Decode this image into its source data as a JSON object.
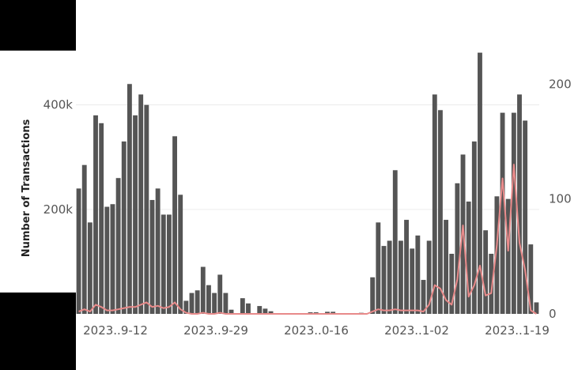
{
  "chart_data": {
    "type": "bar",
    "ylabel": "Number of Transactions",
    "x_tick_labels": [
      "2023..9-12",
      "2023..9-29",
      "2023..0-16",
      "2023..1-02",
      "2023..1-19"
    ],
    "y_left_ticks": [
      {
        "value": 200000,
        "label": "200k"
      },
      {
        "value": 400000,
        "label": "400k"
      }
    ],
    "y_right_ticks": [
      {
        "value": 0,
        "label": "0"
      },
      {
        "value": 100,
        "label": "100"
      },
      {
        "value": 200,
        "label": "200"
      }
    ],
    "ylim_left": [
      0,
      510000
    ],
    "ylim_right": [
      0,
      232
    ],
    "grid": true,
    "series": [
      {
        "type": "bar",
        "axis": "left",
        "color": "#555555",
        "values": [
          240000,
          285000,
          175000,
          380000,
          365000,
          205000,
          210000,
          260000,
          330000,
          440000,
          380000,
          420000,
          400000,
          218000,
          240000,
          190000,
          190000,
          340000,
          228000,
          25000,
          40000,
          45000,
          90000,
          55000,
          40000,
          75000,
          40000,
          8000,
          0,
          30000,
          20000,
          0,
          15000,
          10000,
          5000,
          0,
          0,
          0,
          0,
          0,
          0,
          3000,
          3000,
          0,
          4000,
          4000,
          0,
          0,
          0,
          1000,
          2000,
          0,
          70000,
          175000,
          130000,
          140000,
          275000,
          140000,
          180000,
          125000,
          150000,
          65000,
          140000,
          420000,
          390000,
          180000,
          115000,
          250000,
          305000,
          215000,
          330000,
          500000,
          160000,
          115000,
          225000,
          385000,
          220000,
          385000,
          420000,
          370000,
          133000,
          22000
        ]
      },
      {
        "type": "line",
        "axis": "right",
        "color": "#e88a8a",
        "values": [
          2,
          4,
          2,
          8,
          6,
          3,
          3,
          4,
          5,
          6,
          6,
          8,
          10,
          6,
          7,
          5,
          6,
          10,
          4,
          1,
          0,
          0,
          1,
          0,
          0,
          1,
          0,
          0,
          0,
          0,
          0,
          0,
          0,
          0,
          0,
          0,
          0,
          0,
          0,
          0,
          0,
          0,
          0,
          0,
          0,
          0,
          0,
          0,
          0,
          0,
          0,
          0,
          2,
          4,
          3,
          3,
          4,
          3,
          3,
          3,
          3,
          2,
          8,
          25,
          22,
          12,
          8,
          30,
          77,
          15,
          25,
          42,
          16,
          18,
          60,
          118,
          55,
          130,
          62,
          38,
          3,
          0
        ]
      }
    ]
  }
}
